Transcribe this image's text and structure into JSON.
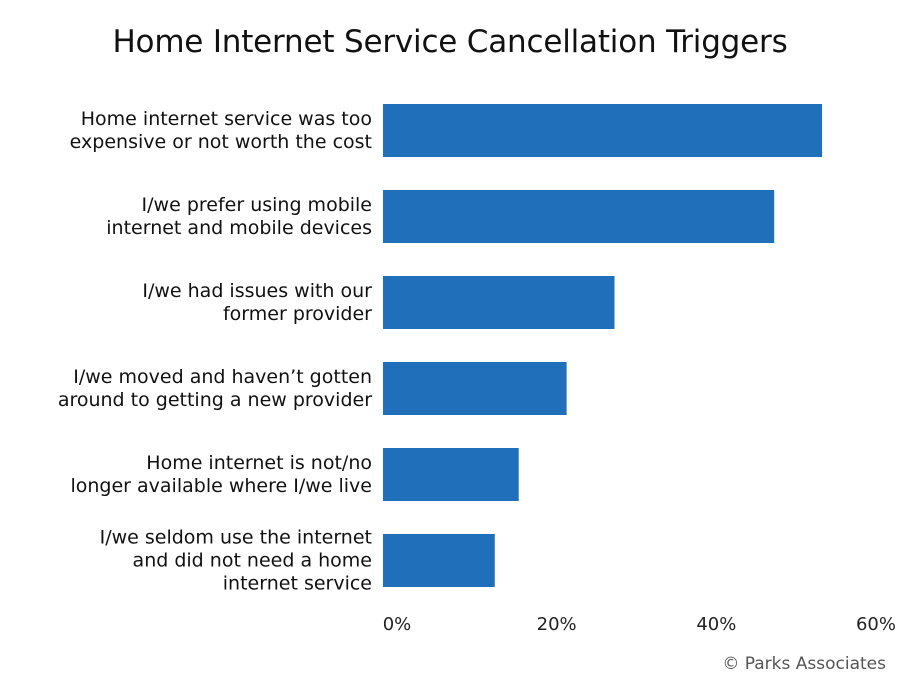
{
  "chart_data": {
    "type": "bar",
    "orientation": "horizontal",
    "title": "Home Internet Service Cancellation Triggers",
    "categories": [
      [
        "Home internet service was too",
        "expensive or not worth the cost"
      ],
      [
        "I/we prefer using mobile",
        "internet and mobile devices"
      ],
      [
        "I/we had issues with our",
        "former provider"
      ],
      [
        "I/we moved and haven’t gotten",
        "around to getting a new provider"
      ],
      [
        "Home internet is not/no",
        "longer available where I/we live"
      ],
      [
        "I/we seldom use the internet",
        "and did not need a home",
        "internet service"
      ]
    ],
    "values": [
      55,
      49,
      29,
      23,
      17,
      14
    ],
    "xlim": [
      0,
      60
    ],
    "xticks": [
      "0%",
      "20%",
      "40%",
      "60%"
    ],
    "grid": false,
    "bar_color": "#1f6fba"
  },
  "source": "© Parks Associates"
}
